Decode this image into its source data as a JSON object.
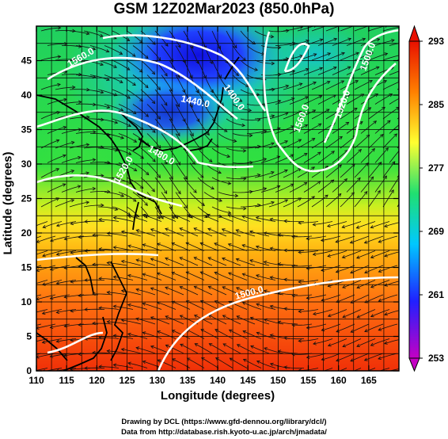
{
  "title": "GSM 12Z02Mar2023 (850.0hPa)",
  "x_axis": {
    "label": "Longitude (degrees)",
    "ticks": [
      "110",
      "115",
      "120",
      "125",
      "130",
      "135",
      "140",
      "145",
      "150",
      "155",
      "160",
      "165"
    ]
  },
  "y_axis": {
    "label": "Latitude (degrees)",
    "ticks": [
      "0",
      "5",
      "10",
      "15",
      "20",
      "25",
      "30",
      "35",
      "40",
      "45"
    ]
  },
  "colorbar": {
    "ticks": [
      "293",
      "285",
      "277",
      "269",
      "261",
      "253"
    ]
  },
  "contours": {
    "labels": [
      "1440.0",
      "1400.0",
      "1480.0",
      "1520.0",
      "1560.0",
      "1500.0",
      "1500.0",
      "1560.0",
      "1520.0"
    ]
  },
  "credits": {
    "line1": "Drawing by DCL (https://www.gfd-dennou.org/library/dcl/)",
    "line2": "Data from http://database.rish.kyoto-u.ac.jp/arch/jmadata/"
  },
  "chart_data": {
    "type": "heatmap",
    "title": "GSM 12Z02Mar2023 (850.0hPa)",
    "xlabel": "Longitude (degrees)",
    "ylabel": "Latitude (degrees)",
    "xlim": [
      110,
      170
    ],
    "ylim": [
      0,
      50
    ],
    "colorbar_range": [
      253,
      293
    ],
    "colormap": [
      "#c400c4",
      "#2020ff",
      "#00c8ff",
      "#20e070",
      "#ffff30",
      "#ff8000",
      "#e81000"
    ],
    "grid": true,
    "overlays": [
      "streamlines",
      "geopotential height contours (white)",
      "coastlines"
    ]
  }
}
